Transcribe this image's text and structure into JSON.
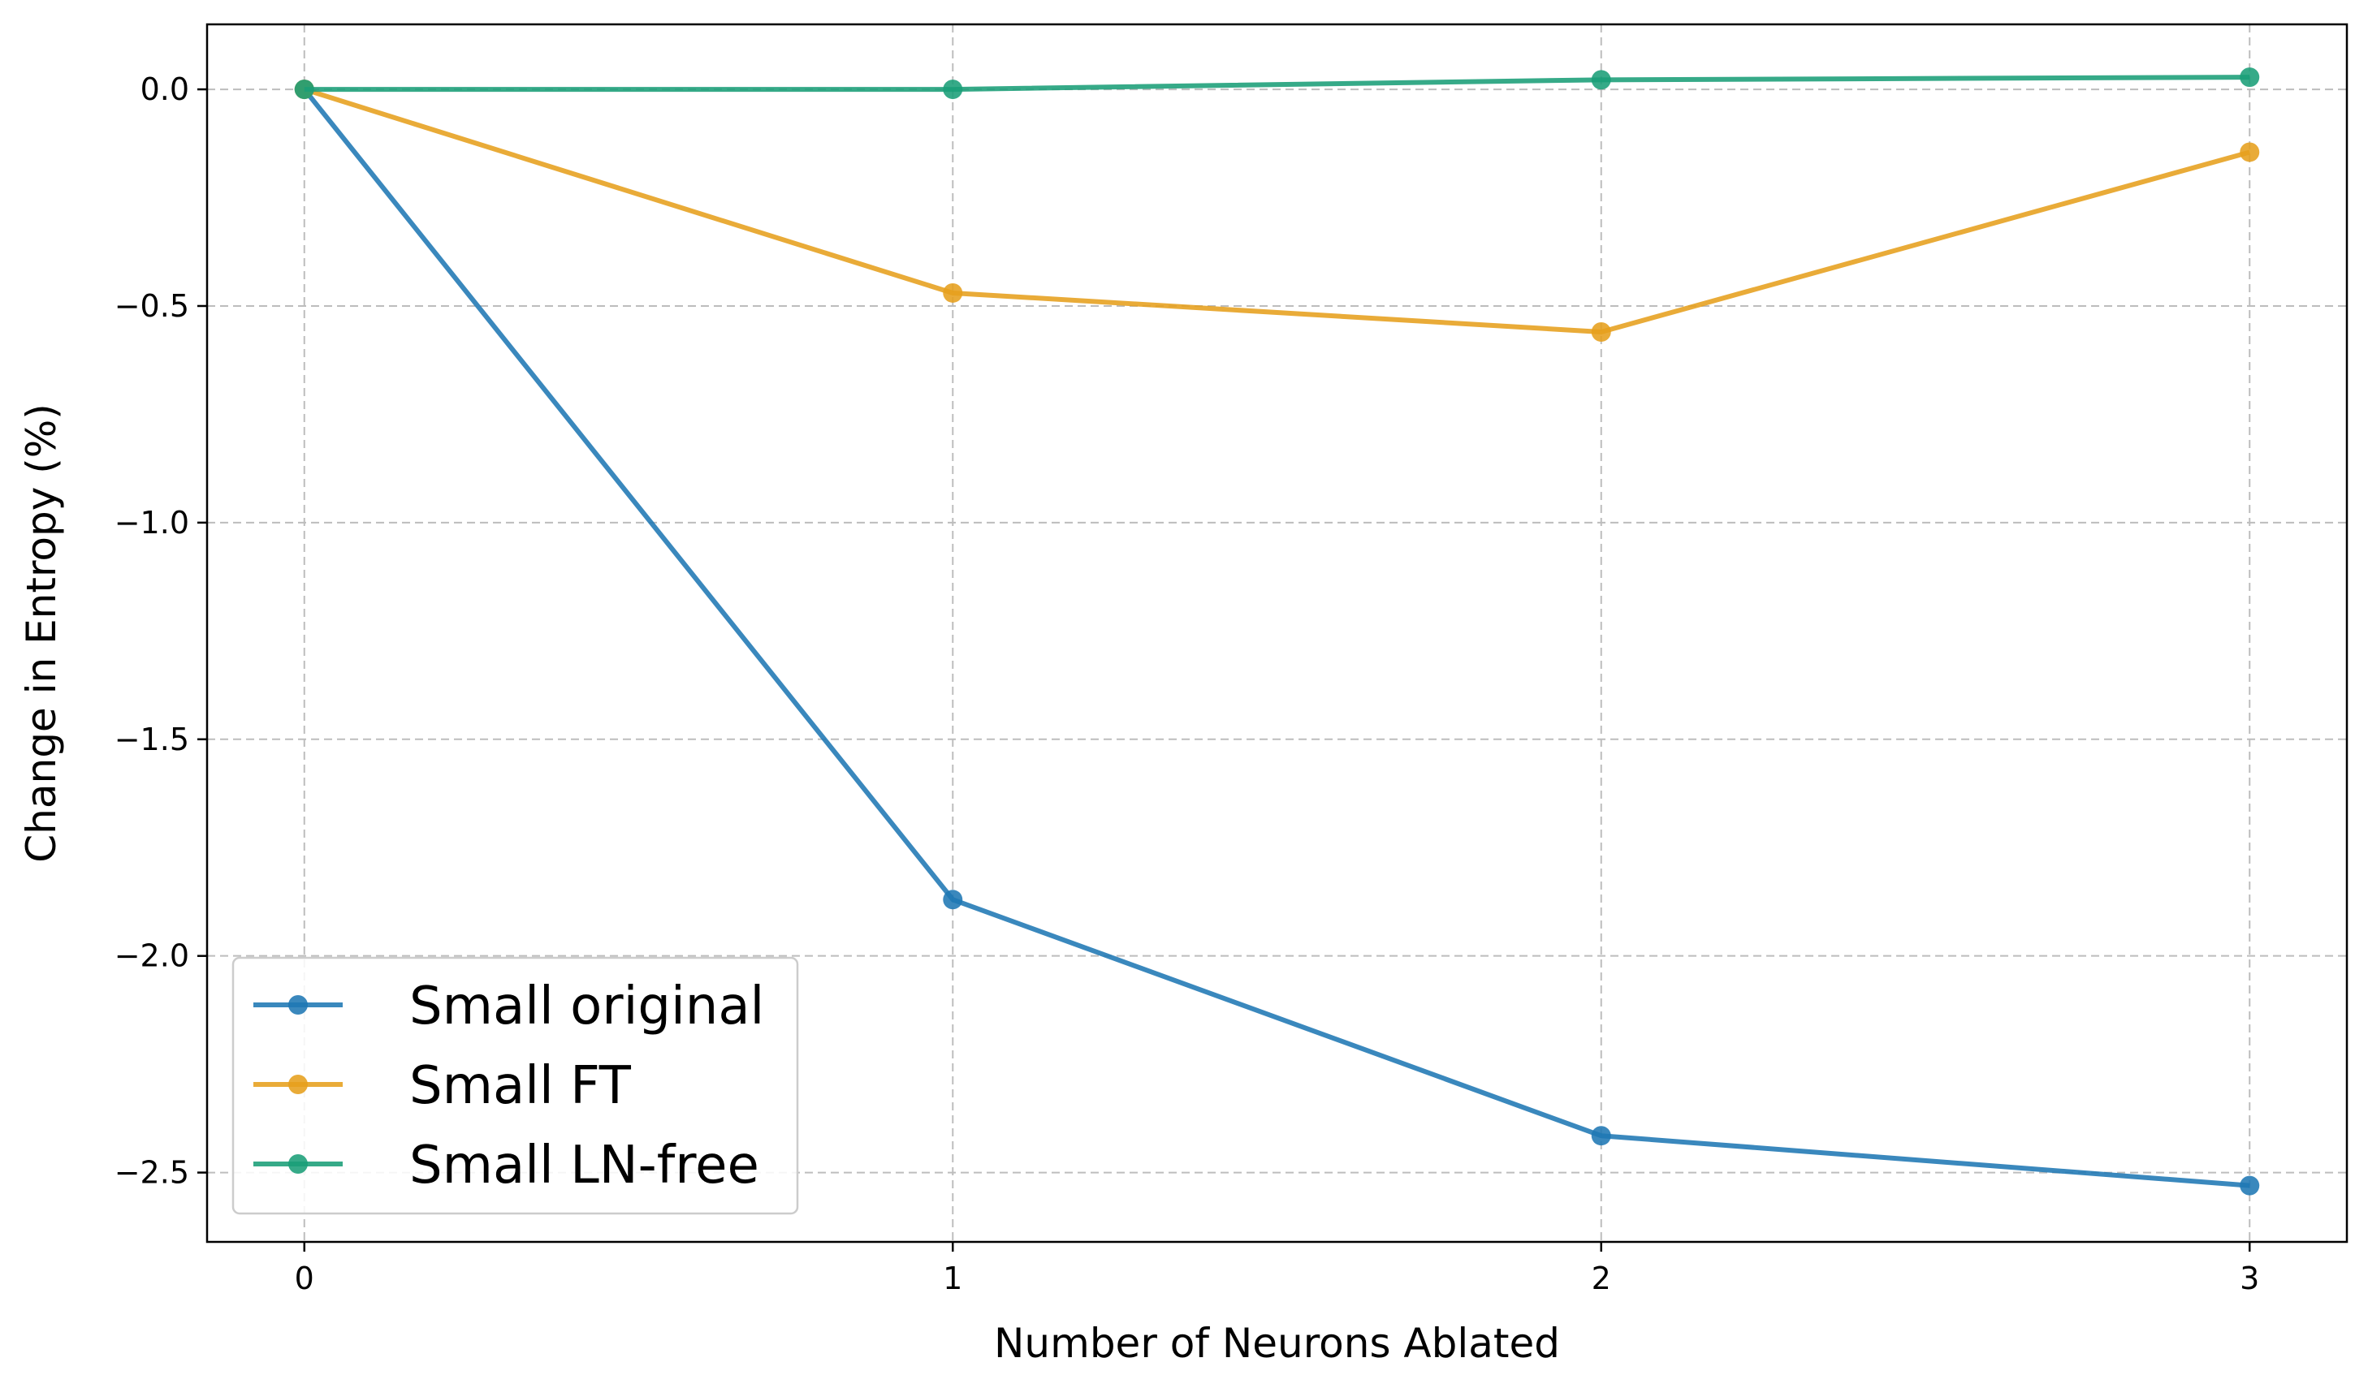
{
  "chart_data": {
    "type": "line",
    "title": "",
    "xlabel": "Number of Neurons Ablated",
    "ylabel": "Change in Entropy (%)",
    "x": [
      0,
      1,
      2,
      3
    ],
    "x_tick_labels": [
      "0",
      "1",
      "2",
      "3"
    ],
    "y_ticks": [
      0.0,
      -0.5,
      -1.0,
      -1.5,
      -2.0,
      -2.5
    ],
    "y_tick_labels": [
      "0.0",
      "−0.5",
      "−1.0",
      "−1.5",
      "−2.0",
      "−2.5"
    ],
    "xlim": [
      -0.15,
      3.15
    ],
    "ylim": [
      -2.66,
      0.15
    ],
    "grid": true,
    "legend_position": "lower-left",
    "series": [
      {
        "name": "Small original",
        "color": "#1f77b4",
        "values": [
          0.0,
          -1.87,
          -2.415,
          -2.53
        ]
      },
      {
        "name": "Small FT",
        "color": "#e69f1c",
        "values": [
          0.0,
          -0.47,
          -0.56,
          -0.145
        ]
      },
      {
        "name": "Small LN-free",
        "color": "#1a9e77",
        "values": [
          0.0,
          0.0,
          0.022,
          0.028
        ]
      }
    ]
  }
}
